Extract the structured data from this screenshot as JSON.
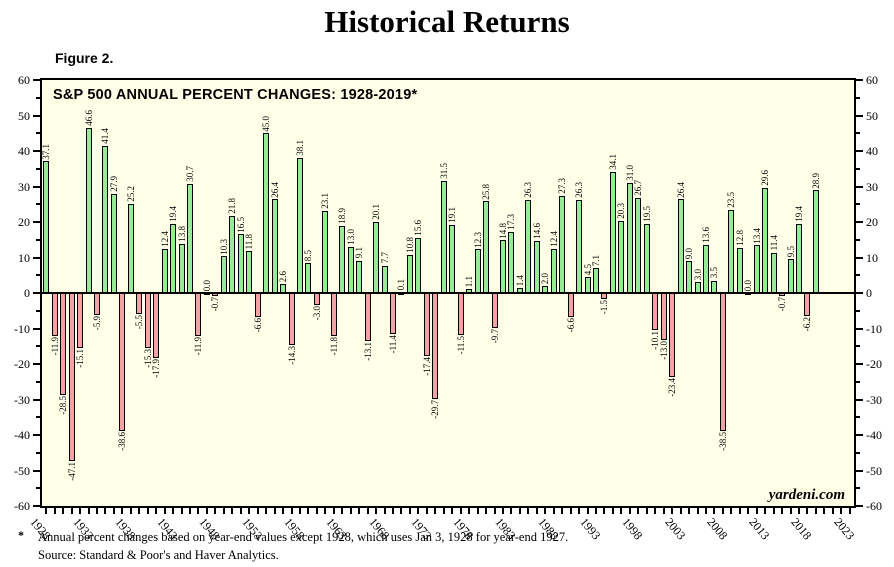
{
  "page_title": "Historical Returns",
  "figure_label": "Figure 2.",
  "chart_title": "S&P 500 ANNUAL PERCENT CHANGES: 1928-2019*",
  "watermark": "yardeni.com",
  "footnote": {
    "marker": "*",
    "line1": "Annual percent changes based on year-end values except 1928, which uses Jan 3, 1928 for year-end 1927.",
    "line2": "Source: Standard & Poor's and Haver Analytics."
  },
  "colors": {
    "bar_positive": "#94ec94",
    "bar_negative": "#f5a2a2",
    "plot_background": "#ffffe8",
    "frame": "#000000"
  },
  "chart_data": {
    "type": "bar",
    "title": "S&P 500 ANNUAL PERCENT CHANGES: 1928-2019*",
    "xlabel": "",
    "ylabel": "",
    "ylim": [
      -60,
      60
    ],
    "y_major_step": 10,
    "y_minor_step": 5,
    "y_tick_labels": [
      "60",
      "50",
      "40",
      "30",
      "20",
      "10",
      "0",
      "-10",
      "-20",
      "-30",
      "-40",
      "-50",
      "-60"
    ],
    "x_domain": [
      1927.5,
      2023.5
    ],
    "x_tick_every_year": true,
    "x_tick_label_years": [
      1928,
      1933,
      1938,
      1943,
      1948,
      1953,
      1958,
      1963,
      1968,
      1973,
      1978,
      1983,
      1988,
      1993,
      1998,
      2003,
      2008,
      2013,
      2018,
      2023
    ],
    "grid": false,
    "legend": false,
    "years": [
      1928,
      1929,
      1930,
      1931,
      1932,
      1933,
      1934,
      1935,
      1936,
      1937,
      1938,
      1939,
      1940,
      1941,
      1942,
      1943,
      1944,
      1945,
      1946,
      1947,
      1948,
      1949,
      1950,
      1951,
      1952,
      1953,
      1954,
      1955,
      1956,
      1957,
      1958,
      1959,
      1960,
      1961,
      1962,
      1963,
      1964,
      1965,
      1966,
      1967,
      1968,
      1969,
      1970,
      1971,
      1972,
      1973,
      1974,
      1975,
      1976,
      1977,
      1978,
      1979,
      1980,
      1981,
      1982,
      1983,
      1984,
      1985,
      1986,
      1987,
      1988,
      1989,
      1990,
      1991,
      1992,
      1993,
      1994,
      1995,
      1996,
      1997,
      1998,
      1999,
      2000,
      2001,
      2002,
      2003,
      2004,
      2005,
      2006,
      2007,
      2008,
      2009,
      2010,
      2011,
      2012,
      2013,
      2014,
      2015,
      2016,
      2017,
      2018,
      2019
    ],
    "values": [
      37.1,
      -11.9,
      -28.5,
      -47.1,
      -15.1,
      46.6,
      -5.9,
      41.4,
      27.9,
      -38.6,
      25.2,
      -5.5,
      -15.3,
      -17.9,
      12.4,
      19.4,
      13.8,
      30.7,
      -11.9,
      0.0,
      -0.7,
      10.3,
      21.8,
      16.5,
      11.8,
      -6.6,
      45.0,
      26.4,
      2.6,
      -14.3,
      38.1,
      8.5,
      -3.0,
      23.1,
      -11.8,
      18.9,
      13.0,
      9.1,
      -13.1,
      20.1,
      7.7,
      -11.4,
      0.1,
      10.8,
      15.6,
      -17.4,
      -29.7,
      31.5,
      19.1,
      -11.5,
      1.1,
      12.3,
      25.8,
      -9.7,
      14.8,
      17.3,
      1.4,
      26.3,
      14.6,
      2.0,
      12.4,
      27.3,
      -6.6,
      26.3,
      4.5,
      7.1,
      -1.5,
      34.1,
      20.3,
      31.0,
      26.7,
      19.5,
      -10.1,
      -13.0,
      -23.4,
      26.4,
      9.0,
      3.0,
      13.6,
      3.5,
      -38.5,
      23.5,
      12.8,
      0.0,
      13.4,
      29.6,
      11.4,
      -0.7,
      9.5,
      19.4,
      -6.2,
      28.9
    ]
  }
}
